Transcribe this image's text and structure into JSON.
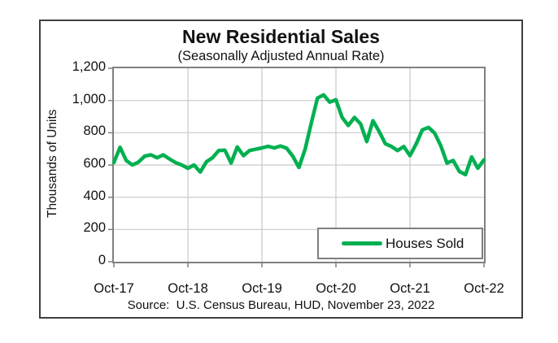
{
  "figure": {
    "title": "New Residential Sales",
    "subtitle": "(Seasonally Adjusted Annual Rate)",
    "y_axis_title": "Thousands of Units",
    "source": "Source:  U.S. Census Bureau, HUD, November 23, 2022",
    "legend": {
      "label": "Houses Sold"
    }
  },
  "chart_data": {
    "type": "line",
    "title": "New Residential Sales",
    "subtitle": "(Seasonally Adjusted Annual Rate)",
    "xlabel": "",
    "ylabel": "Thousands of Units",
    "ylim": [
      0,
      1200
    ],
    "ytick_interval": 200,
    "ytick_labels_bottom_up": [
      "0",
      "200",
      "400",
      "600",
      "800",
      "1,000",
      "1,200"
    ],
    "xtick_labels": [
      "Oct-17",
      "Oct-18",
      "Oct-19",
      "Oct-20",
      "Oct-21",
      "Oct-22"
    ],
    "x_frequency": "monthly",
    "x_start": "Oct-17",
    "x_end": "Oct-22",
    "grid": true,
    "legend_position": "inside-bottom-right",
    "line_color": "#00B050",
    "grid_color": "#c9c9c9",
    "axis_color": "#808080",
    "series": [
      {
        "name": "Houses Sold",
        "values": [
          615,
          710,
          628,
          600,
          618,
          655,
          663,
          645,
          663,
          638,
          615,
          600,
          580,
          600,
          556,
          620,
          645,
          690,
          692,
          612,
          712,
          658,
          690,
          698,
          706,
          716,
          706,
          718,
          705,
          655,
          585,
          698,
          860,
          1015,
          1035,
          990,
          1005,
          895,
          845,
          895,
          855,
          745,
          875,
          808,
          732,
          715,
          690,
          715,
          658,
          730,
          818,
          833,
          798,
          720,
          612,
          628,
          560,
          540,
          650,
          580,
          632
        ]
      }
    ]
  }
}
